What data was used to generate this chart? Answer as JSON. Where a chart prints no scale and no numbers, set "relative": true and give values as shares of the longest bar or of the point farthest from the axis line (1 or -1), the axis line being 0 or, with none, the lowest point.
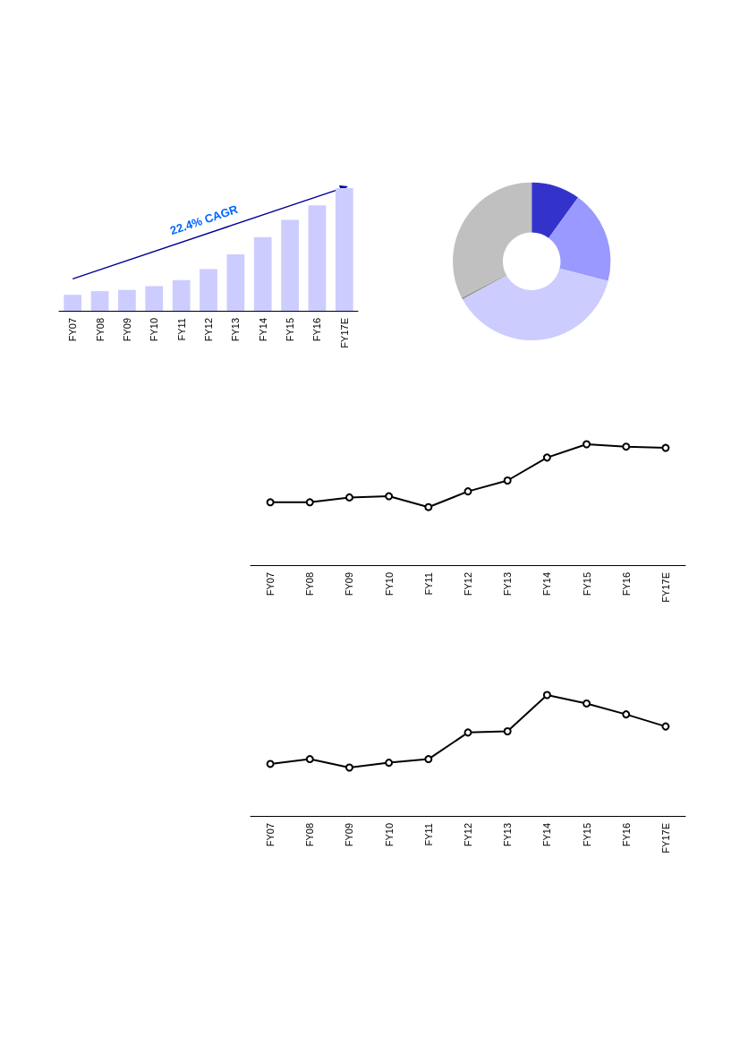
{
  "chart_data": [
    {
      "type": "bar",
      "relative": true,
      "categories": [
        "FY07",
        "FY08",
        "FY09",
        "FY10",
        "FY11",
        "FY12",
        "FY13",
        "FY14",
        "FY15",
        "FY16",
        "FY17E"
      ],
      "values": [
        0.13,
        0.16,
        0.17,
        0.2,
        0.25,
        0.34,
        0.46,
        0.6,
        0.74,
        0.86,
        1
      ],
      "color": "#ccccff",
      "annotations": [
        "22.4% CAGR"
      ]
    },
    {
      "type": "donut",
      "categories": [
        null,
        null,
        null,
        null,
        null
      ],
      "values": [
        10,
        19,
        38,
        0.4,
        32.6
      ],
      "colors": [
        "#3333cc",
        "#9999ff",
        "#ccccff",
        "#999999",
        "#c0c0c0"
      ]
    },
    {
      "type": "line",
      "relative": true,
      "categories": [
        "FY07",
        "FY08",
        "FY09",
        "FY10",
        "FY11",
        "FY12",
        "FY13",
        "FY14",
        "FY15",
        "FY16",
        "FY17E"
      ],
      "values": [
        0.52,
        0.52,
        0.56,
        0.57,
        0.48,
        0.61,
        0.7,
        0.89,
        1,
        0.98,
        0.97
      ],
      "color": "#000000",
      "marker": "circle"
    },
    {
      "type": "line",
      "relative": true,
      "categories": [
        "FY07",
        "FY08",
        "FY09",
        "FY10",
        "FY11",
        "FY12",
        "FY13",
        "FY14",
        "FY15",
        "FY16",
        "FY17E"
      ],
      "values": [
        0.43,
        0.47,
        0.4,
        0.44,
        0.47,
        0.69,
        0.7,
        1,
        0.93,
        0.84,
        0.74
      ],
      "color": "#000000",
      "marker": "circle"
    }
  ]
}
